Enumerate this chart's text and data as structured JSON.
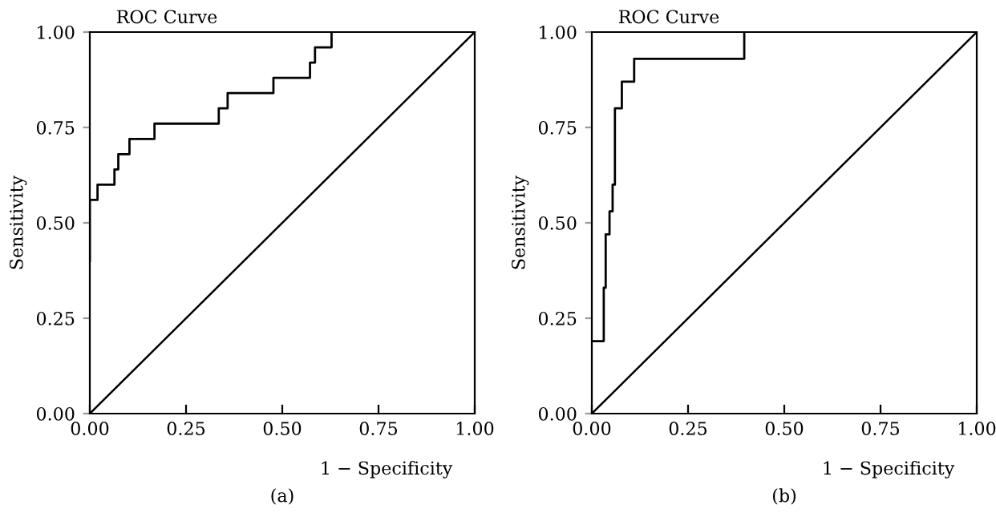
{
  "chart_data": [
    {
      "type": "step",
      "title": "ROC Curve",
      "xlabel": "1 − Specificity",
      "ylabel": "Sensitivity",
      "annotations": [
        "(a)"
      ],
      "series": [
        {
          "color": "#000000",
          "x": [
            0,
            0,
            0.02,
            0.064,
            0.074,
            0.103,
            0.168,
            0.335,
            0.358,
            0.477,
            0.572,
            0.585,
            0.628
          ],
          "values": [
            0.4,
            0.56,
            0.6,
            0.64,
            0.68,
            0.72,
            0.76,
            0.8,
            0.84,
            0.88,
            0.92,
            0.96,
            1.0
          ]
        },
        {
          "type": "line",
          "color": "#000000",
          "x": [
            0,
            1
          ],
          "values": [
            0,
            1
          ]
        }
      ],
      "xlim": [
        0,
        1
      ],
      "ylim": [
        0,
        1
      ],
      "xticks": [
        {
          "value": 0,
          "label": "0.00"
        },
        {
          "value": 0.25,
          "label": "0.25"
        },
        {
          "value": 0.5,
          "label": "0.50"
        },
        {
          "value": 0.75,
          "label": "0.75"
        },
        {
          "value": 1,
          "label": "1.00"
        }
      ],
      "yticks": [
        {
          "value": 0,
          "label": "0.00"
        },
        {
          "value": 0.25,
          "label": "0.25"
        },
        {
          "value": 0.5,
          "label": "0.50"
        },
        {
          "value": 0.75,
          "label": "0.75"
        },
        {
          "value": 1,
          "label": "1.00"
        }
      ],
      "grid": false,
      "legend": false
    },
    {
      "type": "step",
      "title": "ROC Curve",
      "xlabel": "1 − Specificity",
      "ylabel": "Sensitivity",
      "annotations": [
        "(b)"
      ],
      "series": [
        {
          "color": "#000000",
          "x": [
            0,
            0.031,
            0.036,
            0.046,
            0.054,
            0.06,
            0.078,
            0.11,
            0.396
          ],
          "values": [
            0.19,
            0.33,
            0.47,
            0.53,
            0.6,
            0.8,
            0.87,
            0.93,
            1.0
          ]
        },
        {
          "type": "line",
          "color": "#000000",
          "x": [
            0,
            1
          ],
          "values": [
            0,
            1
          ]
        }
      ],
      "xlim": [
        0,
        1
      ],
      "ylim": [
        0,
        1
      ],
      "xticks": [
        {
          "value": 0,
          "label": "0.00"
        },
        {
          "value": 0.25,
          "label": "0.25"
        },
        {
          "value": 0.5,
          "label": "0.50"
        },
        {
          "value": 0.75,
          "label": "0.75"
        },
        {
          "value": 1,
          "label": "1.00"
        }
      ],
      "yticks": [
        {
          "value": 0,
          "label": "0.00"
        },
        {
          "value": 0.25,
          "label": "0.25"
        },
        {
          "value": 0.5,
          "label": "0.50"
        },
        {
          "value": 0.75,
          "label": "0.75"
        },
        {
          "value": 1,
          "label": "1.00"
        }
      ],
      "grid": false,
      "legend": false
    }
  ]
}
